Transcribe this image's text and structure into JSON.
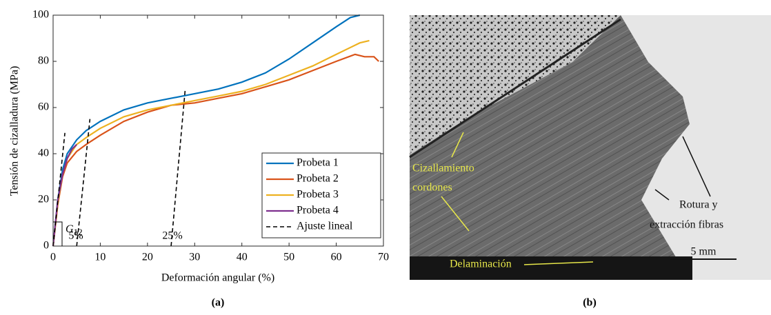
{
  "chart_data": {
    "type": "line",
    "xlabel": "Deformación angular (%)",
    "ylabel": "Tensión de cizalladura (MPa)",
    "xlim": [
      0,
      70
    ],
    "xticks": [
      0,
      10,
      20,
      30,
      40,
      50,
      60,
      70
    ],
    "ylim": [
      0,
      100
    ],
    "yticks": [
      0,
      20,
      40,
      60,
      80,
      100
    ],
    "grid": false,
    "legend": "lower right",
    "series": [
      {
        "name": "Probeta 1",
        "color": "#0072bd",
        "x": [
          0,
          1,
          2,
          3,
          5,
          7,
          10,
          15,
          20,
          25,
          30,
          35,
          40,
          45,
          50,
          55,
          60,
          63,
          65
        ],
        "values": [
          0,
          20,
          33,
          40,
          46,
          50,
          54,
          59,
          62,
          64,
          66,
          68,
          71,
          75,
          81,
          88,
          95,
          99,
          100
        ]
      },
      {
        "name": "Probeta 2",
        "color": "#d95319",
        "x": [
          0,
          1,
          2,
          3,
          5,
          7,
          10,
          15,
          20,
          25,
          30,
          35,
          40,
          45,
          50,
          55,
          60,
          64,
          66,
          68,
          69
        ],
        "values": [
          0,
          18,
          30,
          36,
          41,
          44,
          48,
          54,
          58,
          61,
          62,
          64,
          66,
          69,
          72,
          76,
          80,
          83,
          82,
          82,
          80
        ]
      },
      {
        "name": "Probeta 3",
        "color": "#edb120",
        "x": [
          0,
          1,
          2,
          3,
          5,
          7,
          10,
          15,
          20,
          25,
          30,
          35,
          40,
          45,
          50,
          55,
          60,
          65,
          67
        ],
        "values": [
          0,
          19,
          31,
          38,
          44,
          47,
          51,
          56,
          59,
          61,
          63,
          65,
          67,
          70,
          74,
          78,
          83,
          88,
          89
        ]
      },
      {
        "name": "Probeta 4",
        "color": "#7e2f8e",
        "x": [
          0,
          1,
          2,
          3,
          4,
          5
        ],
        "values": [
          0,
          20,
          31,
          38,
          42,
          44
        ]
      },
      {
        "name": "Ajuste lineal",
        "color": "#000000",
        "dashed": true,
        "x": [
          0,
          2.5,
          null,
          5,
          7.8,
          null,
          25,
          28
        ],
        "values": [
          0,
          49,
          null,
          0,
          55,
          null,
          0,
          68
        ]
      }
    ],
    "annotations": [
      "5%",
      "25%"
    ],
    "modulus_label": {
      "text": "G",
      "subscript": "12"
    }
  },
  "captions": [
    "(a)",
    "(b)"
  ],
  "photo": {
    "labels": [
      "Cizallamiento",
      "cordones",
      "Delaminación",
      "Rotura y",
      "extracción fibras"
    ],
    "scale_bar": "5 mm"
  }
}
